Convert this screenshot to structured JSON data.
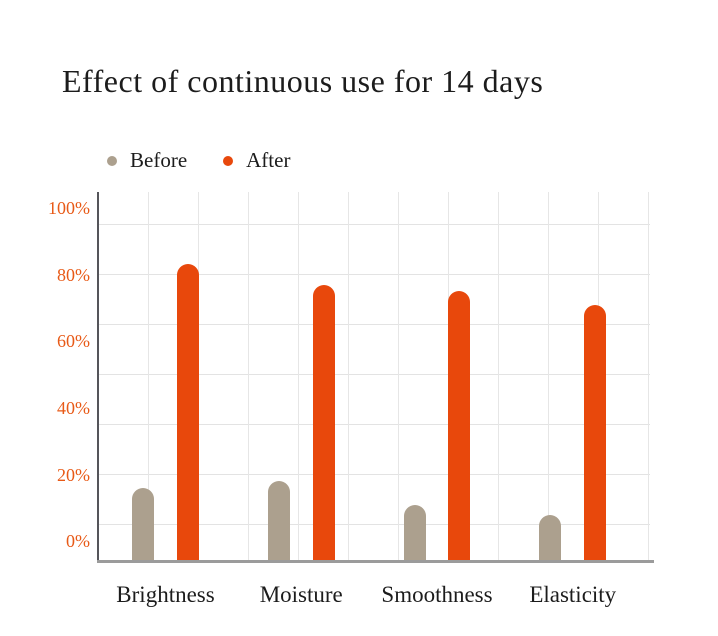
{
  "chart_data": {
    "type": "bar",
    "title": "Effect of continuous use for 14 days",
    "categories": [
      "Brightness",
      "Moisture",
      "Smoothness",
      "Elasticity"
    ],
    "series": [
      {
        "name": "Before",
        "color": "#aca08e",
        "values": [
          16,
          18,
          11,
          8
        ]
      },
      {
        "name": "After",
        "color": "#e8480c",
        "values": [
          83,
          77,
          75,
          71
        ]
      }
    ],
    "unit": "%",
    "ylim": [
      0,
      100
    ],
    "y_tick_labels": [
      "0%",
      "20%",
      "40%",
      "60%",
      "80%",
      "100%"
    ],
    "y_tick_color": "#e85a17",
    "text_color": "#1c1c1c",
    "grid": true,
    "legend_position": "top-left"
  }
}
